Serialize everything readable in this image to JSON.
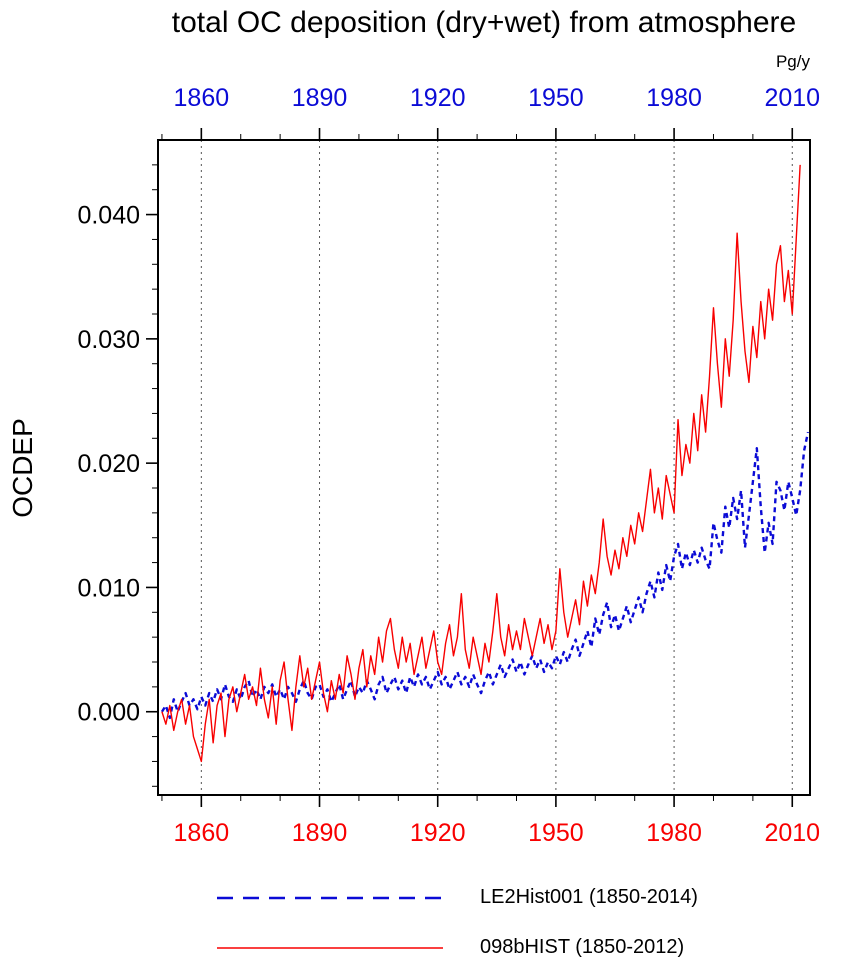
{
  "colors": {
    "blue": "#0b0bd6",
    "red": "#f80000",
    "axis": "#000000",
    "grid": "#555555",
    "blue_label": "#0b0bd6",
    "red_label": "#f80000"
  },
  "chart_data": {
    "type": "line",
    "title": "total OC deposition (dry+wet) from atmosphere",
    "ylabel": "OCDEP",
    "unit": "Pg/y",
    "xlim": [
      1849,
      2014.5
    ],
    "ylim": [
      -0.0067,
      0.046
    ],
    "x_major_ticks": [
      1860,
      1890,
      1920,
      1950,
      1980,
      2010
    ],
    "x_tick_labels": [
      "1860",
      "1890",
      "1920",
      "1950",
      "1980",
      "2010"
    ],
    "x_minor_step": 10,
    "y_major_ticks": [
      0,
      0.01,
      0.02,
      0.03,
      0.04
    ],
    "y_tick_labels": [
      "0.000",
      "0.010",
      "0.020",
      "0.030",
      "0.040"
    ],
    "y_minor_step": 0.002,
    "grid": "vertical-dashed-at-x-majors",
    "legend_position": "bottom",
    "series": [
      {
        "id": "LE2Hist001",
        "name": "LE2Hist001 (1850-2014)",
        "color": "#0b0bd6",
        "style": "dashed",
        "width": 2.4,
        "x_start": 1850,
        "x_step": 1,
        "values": [
          0.0,
          0.0005,
          -0.0005,
          0.001,
          0.0,
          0.0008,
          0.0015,
          0.0005,
          0.001,
          0.0002,
          0.0012,
          0.0005,
          0.0015,
          0.0008,
          0.0018,
          0.001,
          0.0022,
          0.0012,
          0.0008,
          0.0018,
          0.001,
          0.002,
          0.0025,
          0.0012,
          0.0018,
          0.001,
          0.002,
          0.0015,
          0.0022,
          0.0012,
          0.0018,
          0.001,
          0.002,
          0.0015,
          0.0008,
          0.0018,
          0.0025,
          0.0015,
          0.001,
          0.002,
          0.0022,
          0.0012,
          0.0018,
          0.0008,
          0.0015,
          0.0022,
          0.001,
          0.0018,
          0.0025,
          0.0012,
          0.002,
          0.0015,
          0.0025,
          0.0018,
          0.001,
          0.0022,
          0.0028,
          0.0015,
          0.0022,
          0.0028,
          0.0018,
          0.0025,
          0.0015,
          0.0028,
          0.002,
          0.003,
          0.0022,
          0.0028,
          0.0018,
          0.0025,
          0.0032,
          0.0022,
          0.0028,
          0.0018,
          0.0025,
          0.0032,
          0.0022,
          0.0028,
          0.002,
          0.003,
          0.0022,
          0.0015,
          0.0025,
          0.0032,
          0.0022,
          0.003,
          0.0038,
          0.0028,
          0.0035,
          0.0042,
          0.0032,
          0.004,
          0.003,
          0.0038,
          0.0045,
          0.0035,
          0.0042,
          0.0032,
          0.004,
          0.0035,
          0.0045,
          0.0038,
          0.0048,
          0.004,
          0.005,
          0.0058,
          0.0045,
          0.0055,
          0.0065,
          0.0052,
          0.0075,
          0.0062,
          0.0078,
          0.0088,
          0.0068,
          0.0078,
          0.0065,
          0.0075,
          0.0085,
          0.0072,
          0.0082,
          0.0092,
          0.008,
          0.0095,
          0.0105,
          0.0092,
          0.0112,
          0.0098,
          0.0118,
          0.0105,
          0.0125,
          0.0135,
          0.0115,
          0.0128,
          0.0118,
          0.013,
          0.012,
          0.0132,
          0.0122,
          0.0115,
          0.0152,
          0.0138,
          0.0128,
          0.0165,
          0.0148,
          0.0172,
          0.0155,
          0.0178,
          0.0132,
          0.0158,
          0.0185,
          0.0212,
          0.0165,
          0.0128,
          0.0152,
          0.0135,
          0.0185,
          0.0178,
          0.0162,
          0.0185,
          0.0172,
          0.0158,
          0.0178,
          0.021,
          0.0225
        ]
      },
      {
        "id": "098bHIST",
        "name": "098bHIST (1850-2012)",
        "color": "#f80000",
        "style": "solid",
        "width": 1.4,
        "x_start": 1850,
        "x_step": 1,
        "values": [
          0.0,
          -0.001,
          0.0005,
          -0.0015,
          0.0,
          0.001,
          -0.001,
          0.0005,
          -0.002,
          -0.003,
          -0.004,
          -0.001,
          0.001,
          -0.0025,
          0.0005,
          0.0015,
          -0.002,
          0.001,
          0.002,
          0.0,
          0.0015,
          0.003,
          0.001,
          0.002,
          0.0005,
          0.0035,
          0.001,
          -0.0005,
          0.002,
          -0.001,
          0.0025,
          0.004,
          0.001,
          -0.0015,
          0.002,
          0.0045,
          0.002,
          0.0035,
          0.001,
          0.0025,
          0.004,
          0.0015,
          0.0,
          0.0025,
          0.001,
          0.003,
          0.0015,
          0.0045,
          0.003,
          0.001,
          0.0035,
          0.005,
          0.002,
          0.0045,
          0.003,
          0.006,
          0.004,
          0.0065,
          0.0075,
          0.005,
          0.0035,
          0.006,
          0.004,
          0.0055,
          0.003,
          0.0045,
          0.006,
          0.0035,
          0.005,
          0.0065,
          0.004,
          0.003,
          0.0055,
          0.007,
          0.0045,
          0.006,
          0.0095,
          0.005,
          0.0035,
          0.006,
          0.0045,
          0.003,
          0.0055,
          0.004,
          0.0065,
          0.0095,
          0.006,
          0.0045,
          0.007,
          0.005,
          0.0065,
          0.005,
          0.0075,
          0.006,
          0.0045,
          0.006,
          0.0075,
          0.0055,
          0.007,
          0.005,
          0.0065,
          0.0115,
          0.008,
          0.006,
          0.0075,
          0.009,
          0.007,
          0.0105,
          0.0085,
          0.011,
          0.0095,
          0.012,
          0.0155,
          0.0125,
          0.011,
          0.013,
          0.0115,
          0.014,
          0.0125,
          0.015,
          0.0135,
          0.016,
          0.0145,
          0.017,
          0.0195,
          0.016,
          0.018,
          0.0155,
          0.019,
          0.0175,
          0.016,
          0.0235,
          0.019,
          0.0215,
          0.02,
          0.024,
          0.021,
          0.0255,
          0.0225,
          0.027,
          0.0325,
          0.028,
          0.0245,
          0.03,
          0.027,
          0.0315,
          0.0385,
          0.033,
          0.029,
          0.0265,
          0.031,
          0.0285,
          0.033,
          0.03,
          0.034,
          0.0315,
          0.036,
          0.0375,
          0.033,
          0.0355,
          0.032,
          0.038,
          0.044
        ]
      }
    ]
  }
}
